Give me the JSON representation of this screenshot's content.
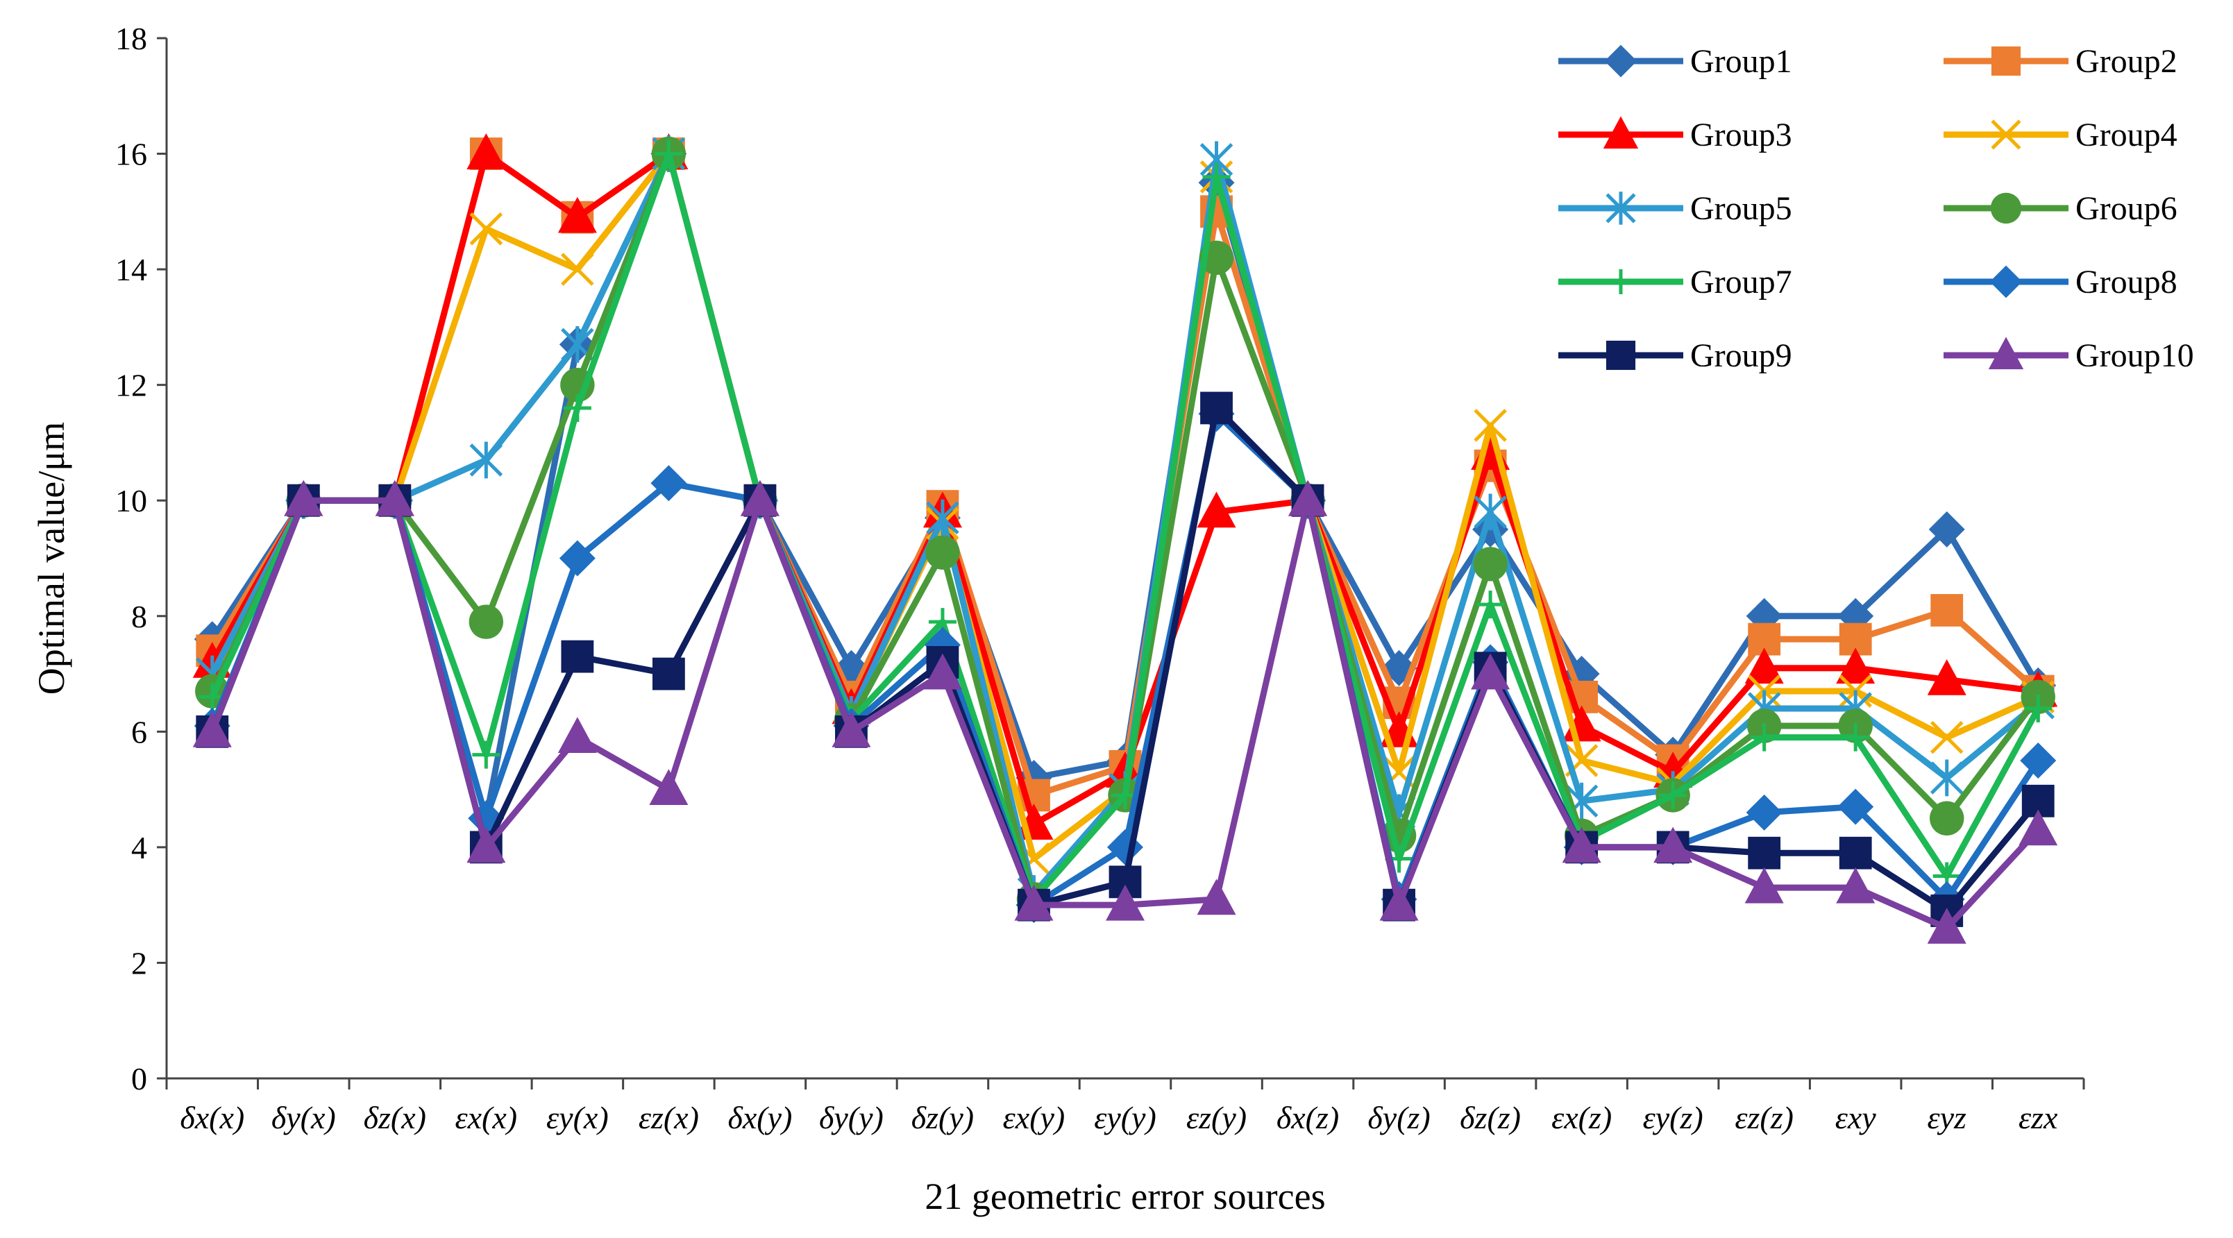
{
  "chart_data": {
    "type": "line",
    "title": "",
    "xlabel": "21 geometric error sources",
    "ylabel": "Optimal value/μm",
    "ylim": [
      0,
      18
    ],
    "yticks": [
      0,
      2,
      4,
      6,
      8,
      10,
      12,
      14,
      16,
      18
    ],
    "grid": false,
    "legend": "top-right",
    "categories": [
      "δx(x)",
      "δy(x)",
      "δz(x)",
      "εx(x)",
      "εy(x)",
      "εz(x)",
      "δx(y)",
      "δy(y)",
      "δz(y)",
      "εx(y)",
      "εy(y)",
      "εz(y)",
      "δx(z)",
      "δy(z)",
      "δz(z)",
      "εx(z)",
      "εy(z)",
      "εz(z)",
      "εxy",
      "εyz",
      "εzx"
    ],
    "series": [
      {
        "name": "Group1",
        "color": "#2E6DB4",
        "marker": "diamond",
        "values": [
          7.6,
          10,
          10,
          4.5,
          12.7,
          16,
          10,
          7.1,
          9.7,
          5.2,
          5.5,
          15.5,
          10,
          7.1,
          9.5,
          7.0,
          5.6,
          8.0,
          8.0,
          9.5,
          6.8
        ]
      },
      {
        "name": "Group2",
        "color": "#ED7D31",
        "marker": "square",
        "values": [
          7.4,
          10,
          10,
          16,
          14.9,
          16,
          10,
          6.6,
          9.9,
          4.9,
          5.4,
          15.0,
          10,
          6.5,
          10.6,
          6.6,
          5.5,
          7.6,
          7.6,
          8.1,
          6.7
        ]
      },
      {
        "name": "Group3",
        "color": "#FF0000",
        "marker": "triangle",
        "values": [
          7.2,
          10,
          10,
          16,
          14.9,
          16,
          10,
          6.4,
          9.8,
          4.4,
          5.3,
          9.8,
          10,
          6.0,
          10.8,
          6.1,
          5.3,
          7.1,
          7.1,
          6.9,
          6.7
        ]
      },
      {
        "name": "Group4",
        "color": "#F5B000",
        "marker": "x",
        "values": [
          7.0,
          10,
          10,
          14.7,
          14.0,
          16,
          10,
          6.3,
          9.6,
          3.8,
          5.0,
          15.6,
          10,
          5.3,
          11.3,
          5.5,
          5.1,
          6.7,
          6.7,
          5.9,
          6.6
        ]
      },
      {
        "name": "Group5",
        "color": "#2E9AD0",
        "marker": "star",
        "values": [
          7.0,
          10,
          10,
          10.7,
          12.7,
          16,
          10,
          6.3,
          9.7,
          3.2,
          5.0,
          15.9,
          10,
          4.6,
          9.8,
          4.8,
          5.0,
          6.4,
          6.4,
          5.2,
          6.5
        ]
      },
      {
        "name": "Group6",
        "color": "#4A9A3A",
        "marker": "circle",
        "values": [
          6.7,
          10,
          10,
          7.9,
          12.0,
          16,
          10,
          6.2,
          9.1,
          3.1,
          4.9,
          14.2,
          10,
          4.2,
          8.9,
          4.2,
          4.9,
          6.1,
          6.1,
          4.5,
          6.6
        ]
      },
      {
        "name": "Group7",
        "color": "#1DB954",
        "marker": "plus",
        "values": [
          6.6,
          10,
          10,
          5.6,
          11.6,
          16,
          10,
          6.2,
          7.9,
          3.1,
          4.9,
          15.6,
          10,
          3.8,
          8.2,
          4.1,
          4.9,
          5.9,
          5.9,
          3.5,
          6.4
        ]
      },
      {
        "name": "Group8",
        "color": "#1F6FC2",
        "marker": "diamond",
        "values": [
          6.1,
          10,
          10,
          4.5,
          9.0,
          10.3,
          10,
          6.1,
          7.5,
          3.0,
          4.0,
          11.5,
          10,
          3.1,
          7.2,
          4.0,
          4.0,
          4.6,
          4.7,
          3.1,
          5.5
        ]
      },
      {
        "name": "Group9",
        "color": "#0E1E5E",
        "marker": "square",
        "values": [
          6.0,
          10,
          10,
          4.0,
          7.3,
          7.0,
          10,
          6.0,
          7.2,
          3.0,
          3.4,
          11.6,
          10,
          3.0,
          7.1,
          4.0,
          4.0,
          3.9,
          3.9,
          2.9,
          4.8
        ]
      },
      {
        "name": "Group10",
        "color": "#7B3FA0",
        "marker": "triangle",
        "values": [
          6.0,
          10,
          10,
          4.0,
          5.9,
          5.0,
          10,
          6.0,
          7.0,
          3.0,
          3.0,
          3.1,
          10,
          3.0,
          7.0,
          4.0,
          4.0,
          3.3,
          3.3,
          2.6,
          4.3
        ]
      }
    ]
  }
}
